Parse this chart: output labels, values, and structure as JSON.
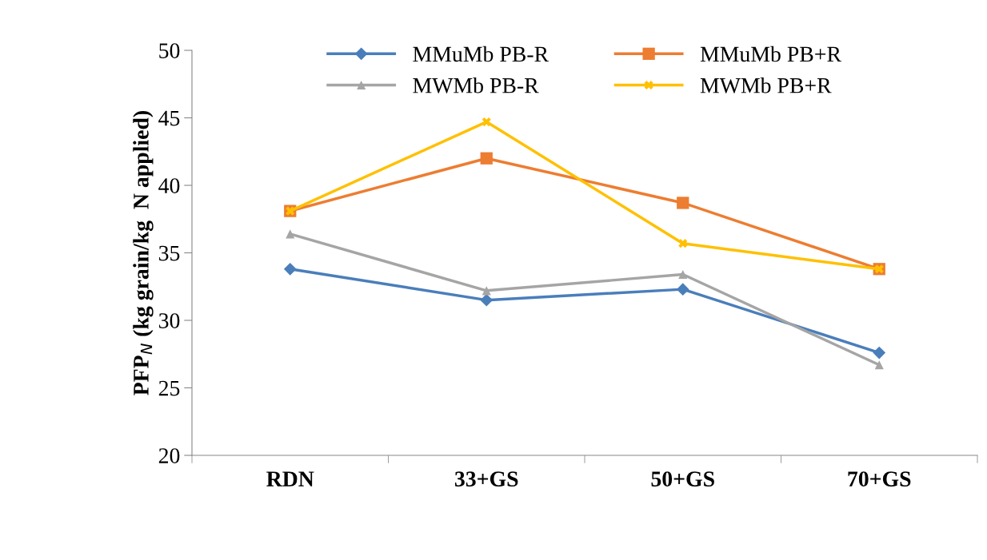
{
  "chart_data": {
    "type": "line",
    "ylabel": "PFP$_{N}$ (kg grain/kg  N applied)",
    "categories": [
      "RDN",
      "33+GS",
      "50+GS",
      "70+GS"
    ],
    "series": [
      {
        "name": "MMuMb PB-R",
        "color": "#4a7ebb",
        "marker": "diamond",
        "values": [
          33.8,
          31.5,
          32.3,
          27.6
        ]
      },
      {
        "name": "MMuMb PB+R",
        "color": "#ed7d31",
        "marker": "square",
        "values": [
          38.1,
          42.0,
          38.7,
          33.8
        ]
      },
      {
        "name": "MWMb PB-R",
        "color": "#a5a5a5",
        "marker": "triangle",
        "values": [
          36.4,
          32.2,
          33.4,
          26.7
        ]
      },
      {
        "name": "MWMb PB+R",
        "color": "#ffc000",
        "marker": "cross",
        "values": [
          38.1,
          44.7,
          35.7,
          33.8
        ]
      }
    ],
    "ylim": [
      20,
      50
    ],
    "yticks": [
      20,
      25,
      30,
      35,
      40,
      45,
      50
    ],
    "grid": false,
    "legend": "top",
    "line_style": "solid"
  }
}
